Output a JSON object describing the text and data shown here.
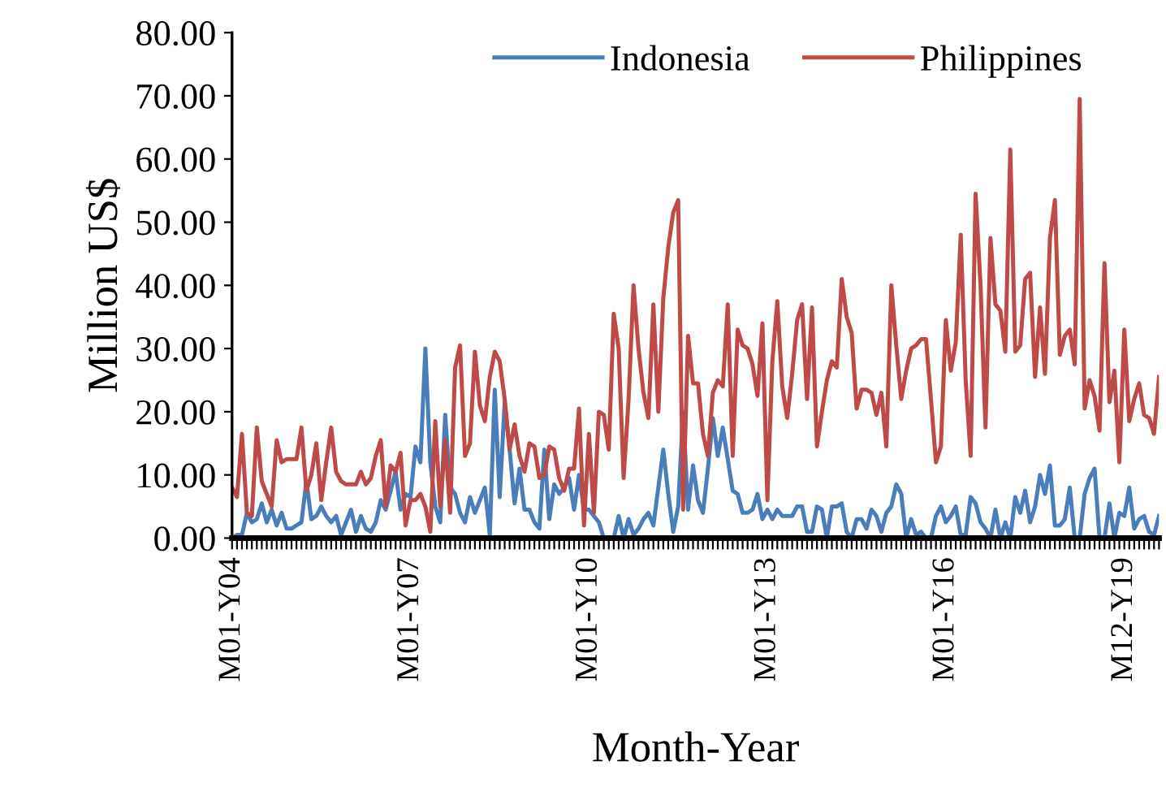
{
  "chart_data": {
    "type": "line",
    "xlabel": "Month-Year",
    "ylabel": "Million US$",
    "categories": [
      "M01-Y04",
      null,
      null,
      null,
      null,
      null,
      null,
      null,
      null,
      null,
      null,
      null,
      null,
      null,
      null,
      null,
      null,
      null,
      null,
      null,
      null,
      null,
      null,
      null,
      null,
      null,
      null,
      null,
      null,
      null,
      null,
      null,
      null,
      null,
      null,
      null,
      "M01-Y07",
      null,
      null,
      null,
      null,
      null,
      null,
      null,
      null,
      null,
      null,
      null,
      null,
      null,
      null,
      null,
      null,
      null,
      null,
      null,
      null,
      null,
      null,
      null,
      null,
      null,
      null,
      null,
      null,
      null,
      null,
      null,
      null,
      null,
      null,
      null,
      "M01-Y10",
      null,
      null,
      null,
      null,
      null,
      null,
      null,
      null,
      null,
      null,
      null,
      null,
      null,
      null,
      null,
      null,
      null,
      null,
      null,
      null,
      null,
      null,
      null,
      null,
      null,
      null,
      null,
      null,
      null,
      null,
      null,
      null,
      null,
      null,
      null,
      "M01-Y13",
      null,
      null,
      null,
      null,
      null,
      null,
      null,
      null,
      null,
      null,
      null,
      null,
      null,
      null,
      null,
      null,
      null,
      null,
      null,
      null,
      null,
      null,
      null,
      null,
      null,
      null,
      null,
      null,
      null,
      null,
      null,
      null,
      null,
      null,
      null,
      "M01-Y16",
      null,
      null,
      null,
      null,
      null,
      null,
      null,
      null,
      null,
      null,
      null,
      null,
      null,
      null,
      null,
      null,
      null,
      null,
      null,
      null,
      null,
      null,
      null,
      null,
      null,
      null,
      null,
      null,
      null,
      null,
      null,
      null,
      null,
      null,
      null,
      "M12-Y19",
      null,
      null,
      null,
      null,
      null,
      null,
      null
    ],
    "series": [
      {
        "name": "Indonesia",
        "color": "#4a7ebb",
        "values": [
          0,
          0.5,
          0.5,
          4,
          2.5,
          3,
          5.5,
          2.5,
          4.5,
          2,
          4,
          1.5,
          1.5,
          2,
          2.5,
          9,
          3,
          3.5,
          5,
          3.5,
          2.5,
          3.5,
          0.5,
          2.5,
          4.5,
          1,
          3.5,
          1.5,
          1,
          2.5,
          6,
          4.5,
          7.5,
          10.5,
          4.5,
          7,
          6.5,
          14.5,
          12,
          30,
          12,
          5,
          2.5,
          19.5,
          8,
          7,
          4,
          2.5,
          6.5,
          4,
          6,
          8,
          0.5,
          23.5,
          6.5,
          21.5,
          14,
          5.5,
          11,
          4.5,
          4.5,
          2.5,
          1.5,
          14,
          3,
          8.5,
          7,
          8,
          9.5,
          4.5,
          10,
          4.5,
          4.5,
          3.5,
          2.5,
          0,
          0,
          0,
          3.5,
          0,
          3,
          0.5,
          1.5,
          3,
          4,
          2,
          8,
          14,
          7,
          1,
          5,
          20,
          4.5,
          11.5,
          6,
          4,
          11,
          19,
          13,
          17.5,
          12.5,
          7.5,
          7,
          4,
          4,
          4.5,
          7,
          3,
          4.5,
          3,
          4.5,
          3.5,
          3.5,
          3.5,
          5,
          5,
          1,
          1,
          5,
          4.5,
          0,
          5,
          5,
          5.5,
          1,
          0,
          3,
          3,
          1.5,
          4.5,
          3.5,
          1,
          4,
          5,
          8.5,
          7,
          0,
          3,
          0.5,
          1,
          0,
          0,
          3.5,
          5,
          2.5,
          3.5,
          5,
          0.5,
          0.5,
          6.5,
          5.5,
          2.5,
          1.5,
          0,
          4.5,
          0,
          2.5,
          0,
          6.5,
          4,
          7.5,
          2.5,
          5,
          10,
          7,
          11.5,
          2,
          2,
          3,
          8,
          0,
          0,
          7,
          9.5,
          11,
          0,
          0,
          5.5,
          0,
          4,
          3.5,
          8,
          1.5,
          3,
          3.5,
          1,
          0.5,
          3.5
        ]
      },
      {
        "name": "Philippines",
        "color": "#be4b48",
        "values": [
          8,
          6.5,
          16.5,
          4,
          3.5,
          17.5,
          9,
          7,
          5,
          15.5,
          12,
          12.5,
          12.5,
          12.5,
          17.5,
          7.5,
          10,
          15,
          6,
          12,
          17.5,
          10.5,
          9,
          8.5,
          8.5,
          8.5,
          10.5,
          8.5,
          9.5,
          13,
          15.5,
          5,
          11.5,
          10.5,
          13.5,
          2,
          6,
          6,
          7,
          5,
          1,
          18.5,
          5,
          15.5,
          4,
          27,
          30.5,
          13,
          15,
          29.5,
          21,
          18.5,
          25.5,
          29.5,
          28,
          22,
          14,
          18,
          13,
          10.5,
          15,
          14.5,
          9.5,
          10,
          14.5,
          14,
          9.5,
          7.5,
          11,
          11,
          20.5,
          2,
          16.5,
          4,
          20,
          19.5,
          14,
          35.5,
          30,
          9.5,
          22,
          40,
          30,
          23,
          19,
          37,
          20,
          38,
          46,
          51.5,
          53.5,
          4.5,
          32,
          24.5,
          24.5,
          16.5,
          13,
          23,
          25,
          24,
          37,
          13,
          33,
          30.5,
          30,
          27.5,
          22.5,
          34,
          6,
          28,
          37.5,
          24,
          19,
          26,
          34.5,
          37,
          22,
          36.5,
          14.5,
          20,
          25,
          28,
          27,
          41,
          35,
          32.5,
          20.5,
          23.5,
          23.5,
          23,
          19.5,
          23,
          14.5,
          40,
          30.5,
          22,
          26.5,
          30,
          30.5,
          31.5,
          31.5,
          22,
          12,
          14.5,
          34.5,
          26.5,
          31,
          48,
          25,
          13,
          54.5,
          40,
          17.5,
          47.5,
          37,
          36,
          29.5,
          61.5,
          29.5,
          30.5,
          41,
          42,
          25.5,
          36.5,
          26,
          47.5,
          53.5,
          29,
          32,
          33,
          27.5,
          69.5,
          20.5,
          25,
          22.5,
          17,
          43.5,
          21.5,
          26.5,
          12,
          33,
          18.5,
          22,
          24.5,
          19.5,
          19,
          16.5,
          25.5
        ]
      }
    ],
    "ylim": [
      0,
      80
    ],
    "yticks": [
      {
        "value": 0,
        "label": "0.00"
      },
      {
        "value": 10,
        "label": "10.00"
      },
      {
        "value": 20,
        "label": "20.00"
      },
      {
        "value": 30,
        "label": "30.00"
      },
      {
        "value": 40,
        "label": "40.00"
      },
      {
        "value": 50,
        "label": "50.00"
      },
      {
        "value": 60,
        "label": "60.00"
      },
      {
        "value": 70,
        "label": "70.00"
      },
      {
        "value": 80,
        "label": "80.00"
      }
    ],
    "grid": false,
    "legend": "top",
    "marker": "none",
    "line_style": "solid"
  }
}
